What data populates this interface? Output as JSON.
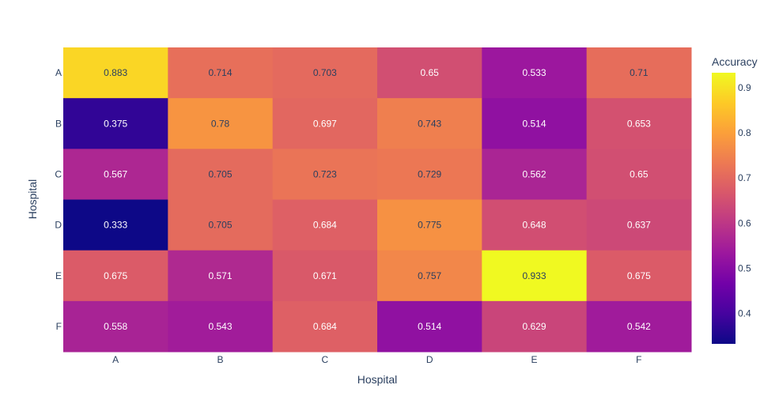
{
  "chart_data": {
    "type": "heatmap",
    "x_categories": [
      "A",
      "B",
      "C",
      "D",
      "E",
      "F"
    ],
    "y_categories": [
      "A",
      "B",
      "C",
      "D",
      "E",
      "F"
    ],
    "values": [
      [
        0.883,
        0.714,
        0.703,
        0.65,
        0.533,
        0.71
      ],
      [
        0.375,
        0.78,
        0.697,
        0.743,
        0.514,
        0.653
      ],
      [
        0.567,
        0.705,
        0.723,
        0.729,
        0.562,
        0.65
      ],
      [
        0.333,
        0.705,
        0.684,
        0.775,
        0.648,
        0.637
      ],
      [
        0.675,
        0.571,
        0.671,
        0.757,
        0.933,
        0.675
      ],
      [
        0.558,
        0.543,
        0.684,
        0.514,
        0.629,
        0.542
      ]
    ],
    "value_labels": [
      [
        "0.883",
        "0.714",
        "0.703",
        "0.65",
        "0.533",
        "0.71"
      ],
      [
        "0.375",
        "0.78",
        "0.697",
        "0.743",
        "0.514",
        "0.653"
      ],
      [
        "0.567",
        "0.705",
        "0.723",
        "0.729",
        "0.562",
        "0.65"
      ],
      [
        "0.333",
        "0.705",
        "0.684",
        "0.775",
        "0.648",
        "0.637"
      ],
      [
        "0.675",
        "0.571",
        "0.671",
        "0.757",
        "0.933",
        "0.675"
      ],
      [
        "0.558",
        "0.543",
        "0.684",
        "0.514",
        "0.629",
        "0.542"
      ]
    ],
    "xlabel": "Hospital",
    "ylabel": "Hospital",
    "colorbar": {
      "title": "Accuracy",
      "range": [
        0.333,
        0.933
      ],
      "ticks": [
        0.4,
        0.5,
        0.6,
        0.7,
        0.8,
        0.9
      ],
      "tick_labels": [
        "0.4",
        "0.5",
        "0.6",
        "0.7",
        "0.8",
        "0.9"
      ],
      "colorscale": [
        "#0d0887",
        "#46039f",
        "#7201a8",
        "#9c179e",
        "#bd3786",
        "#d8576b",
        "#ed7953",
        "#fb9f3a",
        "#fdca26",
        "#f0f921"
      ]
    },
    "grid": false
  }
}
